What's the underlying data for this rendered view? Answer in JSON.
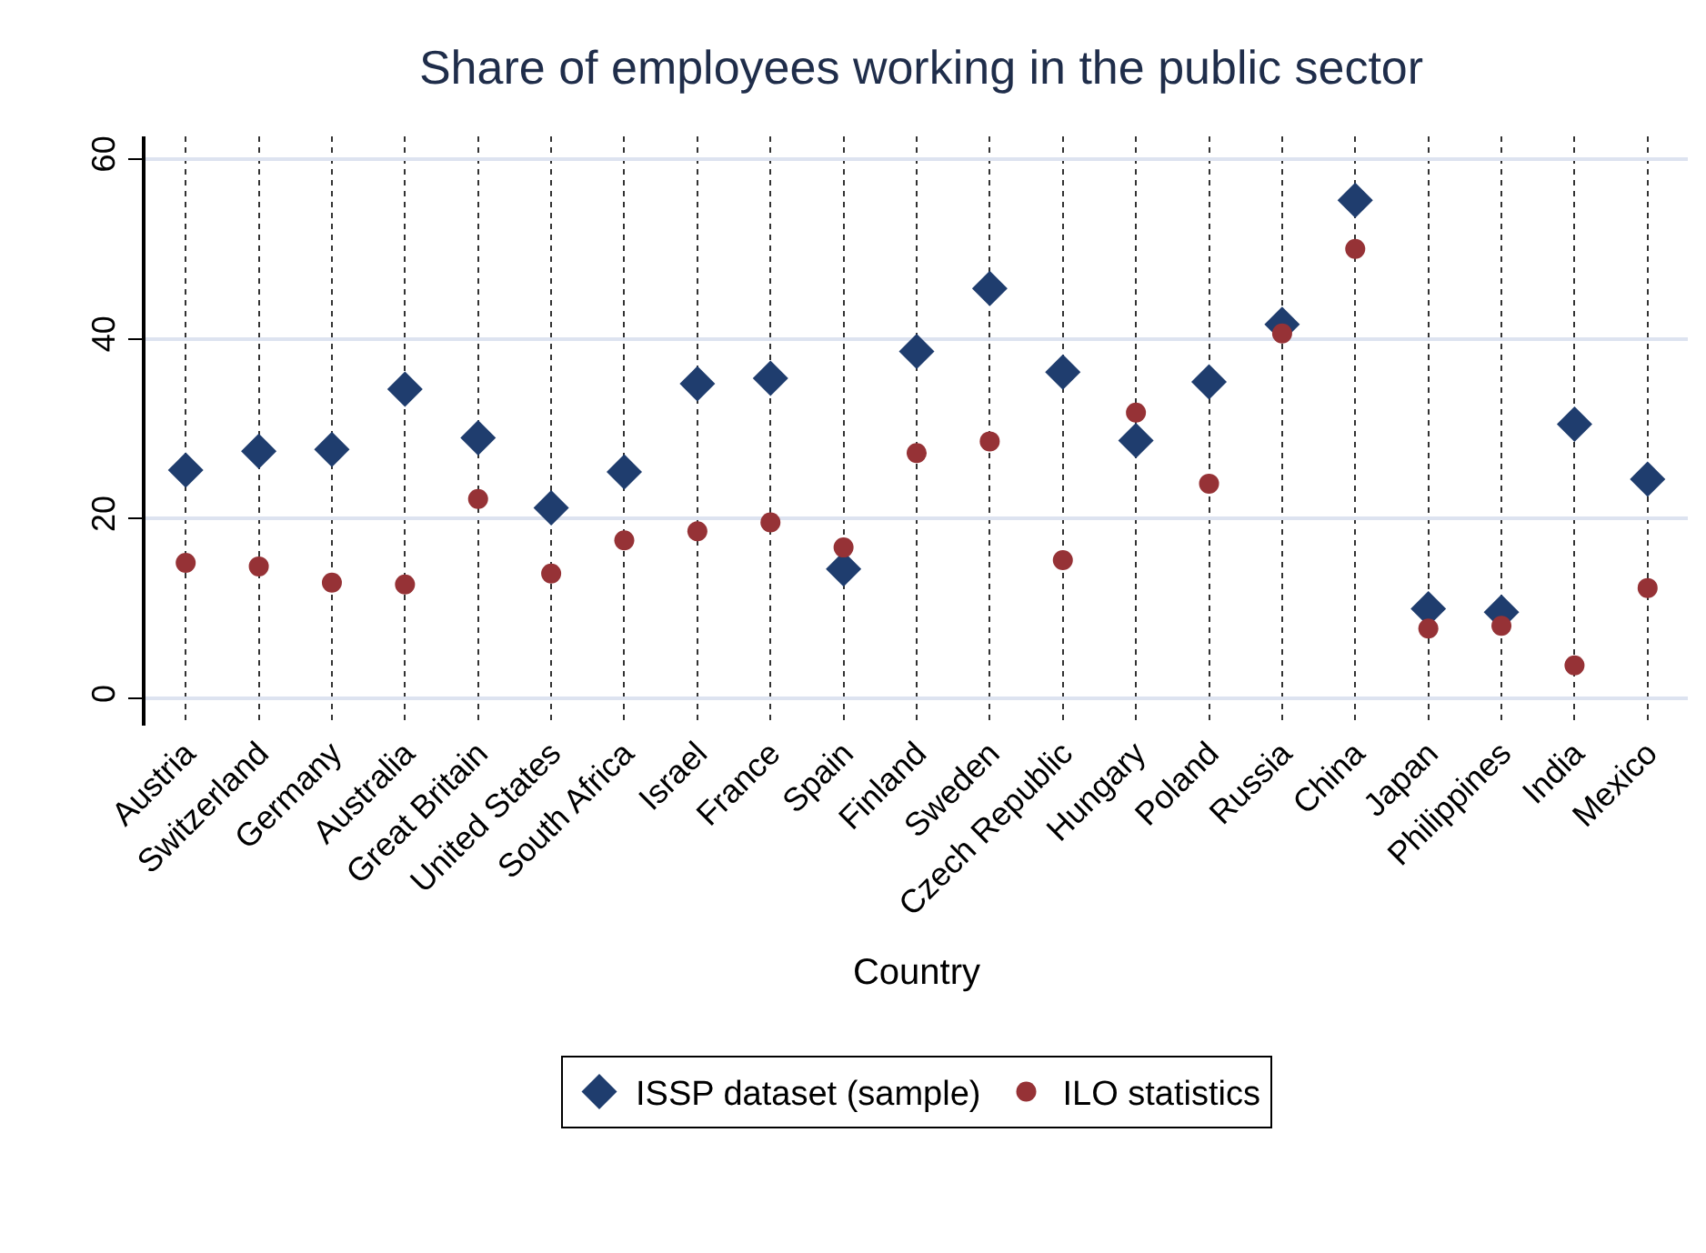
{
  "chart_data": {
    "type": "scatter",
    "title": "Share of employees working in the public sector",
    "xlabel": "Country",
    "categories": [
      "Austria",
      "Switzerland",
      "Germany",
      "Australia",
      "Great Britain",
      "United States",
      "South Africa",
      "Israel",
      "France",
      "Spain",
      "Finland",
      "Sweden",
      "Czech Republic",
      "Hungary",
      "Poland",
      "Russia",
      "China",
      "Japan",
      "Philippines",
      "India",
      "Mexico"
    ],
    "series": [
      {
        "name": "ISSP dataset (sample)",
        "color": "#1f3d6e",
        "marker": "diamond",
        "values": [
          25.4,
          27.5,
          27.7,
          34.4,
          29.0,
          21.2,
          25.2,
          35.0,
          35.6,
          14.4,
          38.6,
          45.6,
          36.3,
          28.7,
          35.2,
          41.6,
          55.4,
          10.0,
          9.6,
          30.5,
          24.4
        ]
      },
      {
        "name": "ILO statistics",
        "color": "#963236",
        "marker": "circle",
        "values": [
          15.1,
          14.7,
          12.9,
          12.7,
          22.2,
          13.9,
          17.6,
          18.6,
          19.6,
          16.8,
          27.3,
          28.6,
          15.4,
          31.8,
          23.9,
          40.6,
          50.0,
          7.8,
          8.1,
          3.7,
          12.3
        ]
      }
    ],
    "ylim": [
      -3,
      62.5
    ],
    "yticks": [
      0,
      20,
      40,
      60
    ],
    "grid": true,
    "legend": "bottom"
  }
}
